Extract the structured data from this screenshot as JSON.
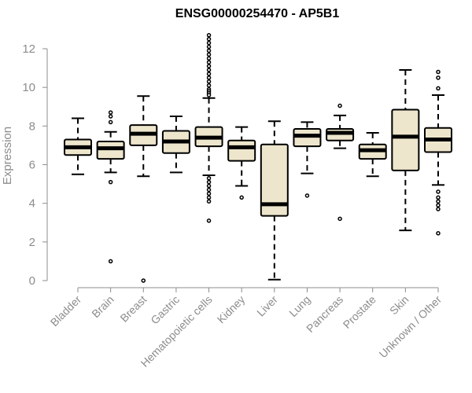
{
  "chart_data": {
    "type": "boxplot",
    "title": "ENSG00000254470 - AP5B1",
    "xlabel": "",
    "ylabel": "Expression",
    "ylim": [
      0,
      12
    ],
    "yticks": [
      0,
      2,
      4,
      6,
      8,
      10,
      12
    ],
    "colors": {
      "box_fill": "#ede6cc",
      "stroke": "#000000",
      "axis": "#8c8c8c",
      "text": "#8c8c8c"
    },
    "categories": [
      "Bladder",
      "Brain",
      "Breast",
      "Gastric",
      "Hematopoietic cells",
      "Kidney",
      "Liver",
      "Lung",
      "Pancreas",
      "Prostate",
      "Skin",
      "Unknown / Other"
    ],
    "boxes": [
      {
        "name": "Bladder",
        "whisker_low": 5.5,
        "q1": 6.5,
        "median": 6.9,
        "q3": 7.3,
        "whisker_high": 8.4,
        "outliers": []
      },
      {
        "name": "Brain",
        "whisker_low": 5.6,
        "q1": 6.3,
        "median": 6.85,
        "q3": 7.2,
        "whisker_high": 7.7,
        "outliers": [
          8.7,
          8.5,
          8.2,
          5.1,
          1.0
        ]
      },
      {
        "name": "Breast",
        "whisker_low": 5.4,
        "q1": 7.0,
        "median": 7.6,
        "q3": 8.05,
        "whisker_high": 9.55,
        "outliers": [
          0.0
        ]
      },
      {
        "name": "Gastric",
        "whisker_low": 5.6,
        "q1": 6.6,
        "median": 7.2,
        "q3": 7.75,
        "whisker_high": 8.5,
        "outliers": []
      },
      {
        "name": "Hematopoietic cells",
        "whisker_low": 5.45,
        "q1": 6.95,
        "median": 7.4,
        "q3": 7.95,
        "whisker_high": 9.45,
        "outliers": [
          12.7,
          12.5,
          12.3,
          12.1,
          11.9,
          11.7,
          11.5,
          11.3,
          11.1,
          10.9,
          10.7,
          10.5,
          10.3,
          10.1,
          9.9,
          9.8,
          9.7,
          9.6,
          5.3,
          5.1,
          4.9,
          4.7,
          4.5,
          4.3,
          4.1,
          3.1
        ]
      },
      {
        "name": "Kidney",
        "whisker_low": 4.9,
        "q1": 6.2,
        "median": 6.9,
        "q3": 7.25,
        "whisker_high": 7.95,
        "outliers": [
          4.3
        ]
      },
      {
        "name": "Liver",
        "whisker_low": 0.05,
        "q1": 3.35,
        "median": 3.95,
        "q3": 7.05,
        "whisker_high": 8.25,
        "outliers": []
      },
      {
        "name": "Lung",
        "whisker_low": 5.55,
        "q1": 6.95,
        "median": 7.5,
        "q3": 7.85,
        "whisker_high": 8.2,
        "outliers": [
          4.4
        ]
      },
      {
        "name": "Pancreas",
        "whisker_low": 6.85,
        "q1": 7.25,
        "median": 7.65,
        "q3": 7.85,
        "whisker_high": 8.55,
        "outliers": [
          9.05,
          3.2
        ]
      },
      {
        "name": "Prostate",
        "whisker_low": 5.4,
        "q1": 6.3,
        "median": 6.75,
        "q3": 7.05,
        "whisker_high": 7.65,
        "outliers": []
      },
      {
        "name": "Skin",
        "whisker_low": 2.6,
        "q1": 5.7,
        "median": 7.45,
        "q3": 8.85,
        "whisker_high": 10.9,
        "outliers": []
      },
      {
        "name": "Unknown / Other",
        "whisker_low": 4.95,
        "q1": 6.65,
        "median": 7.3,
        "q3": 7.9,
        "whisker_high": 9.6,
        "outliers": [
          10.8,
          10.5,
          9.95,
          4.6,
          4.3,
          4.1,
          3.9,
          3.7,
          2.45
        ]
      }
    ]
  }
}
